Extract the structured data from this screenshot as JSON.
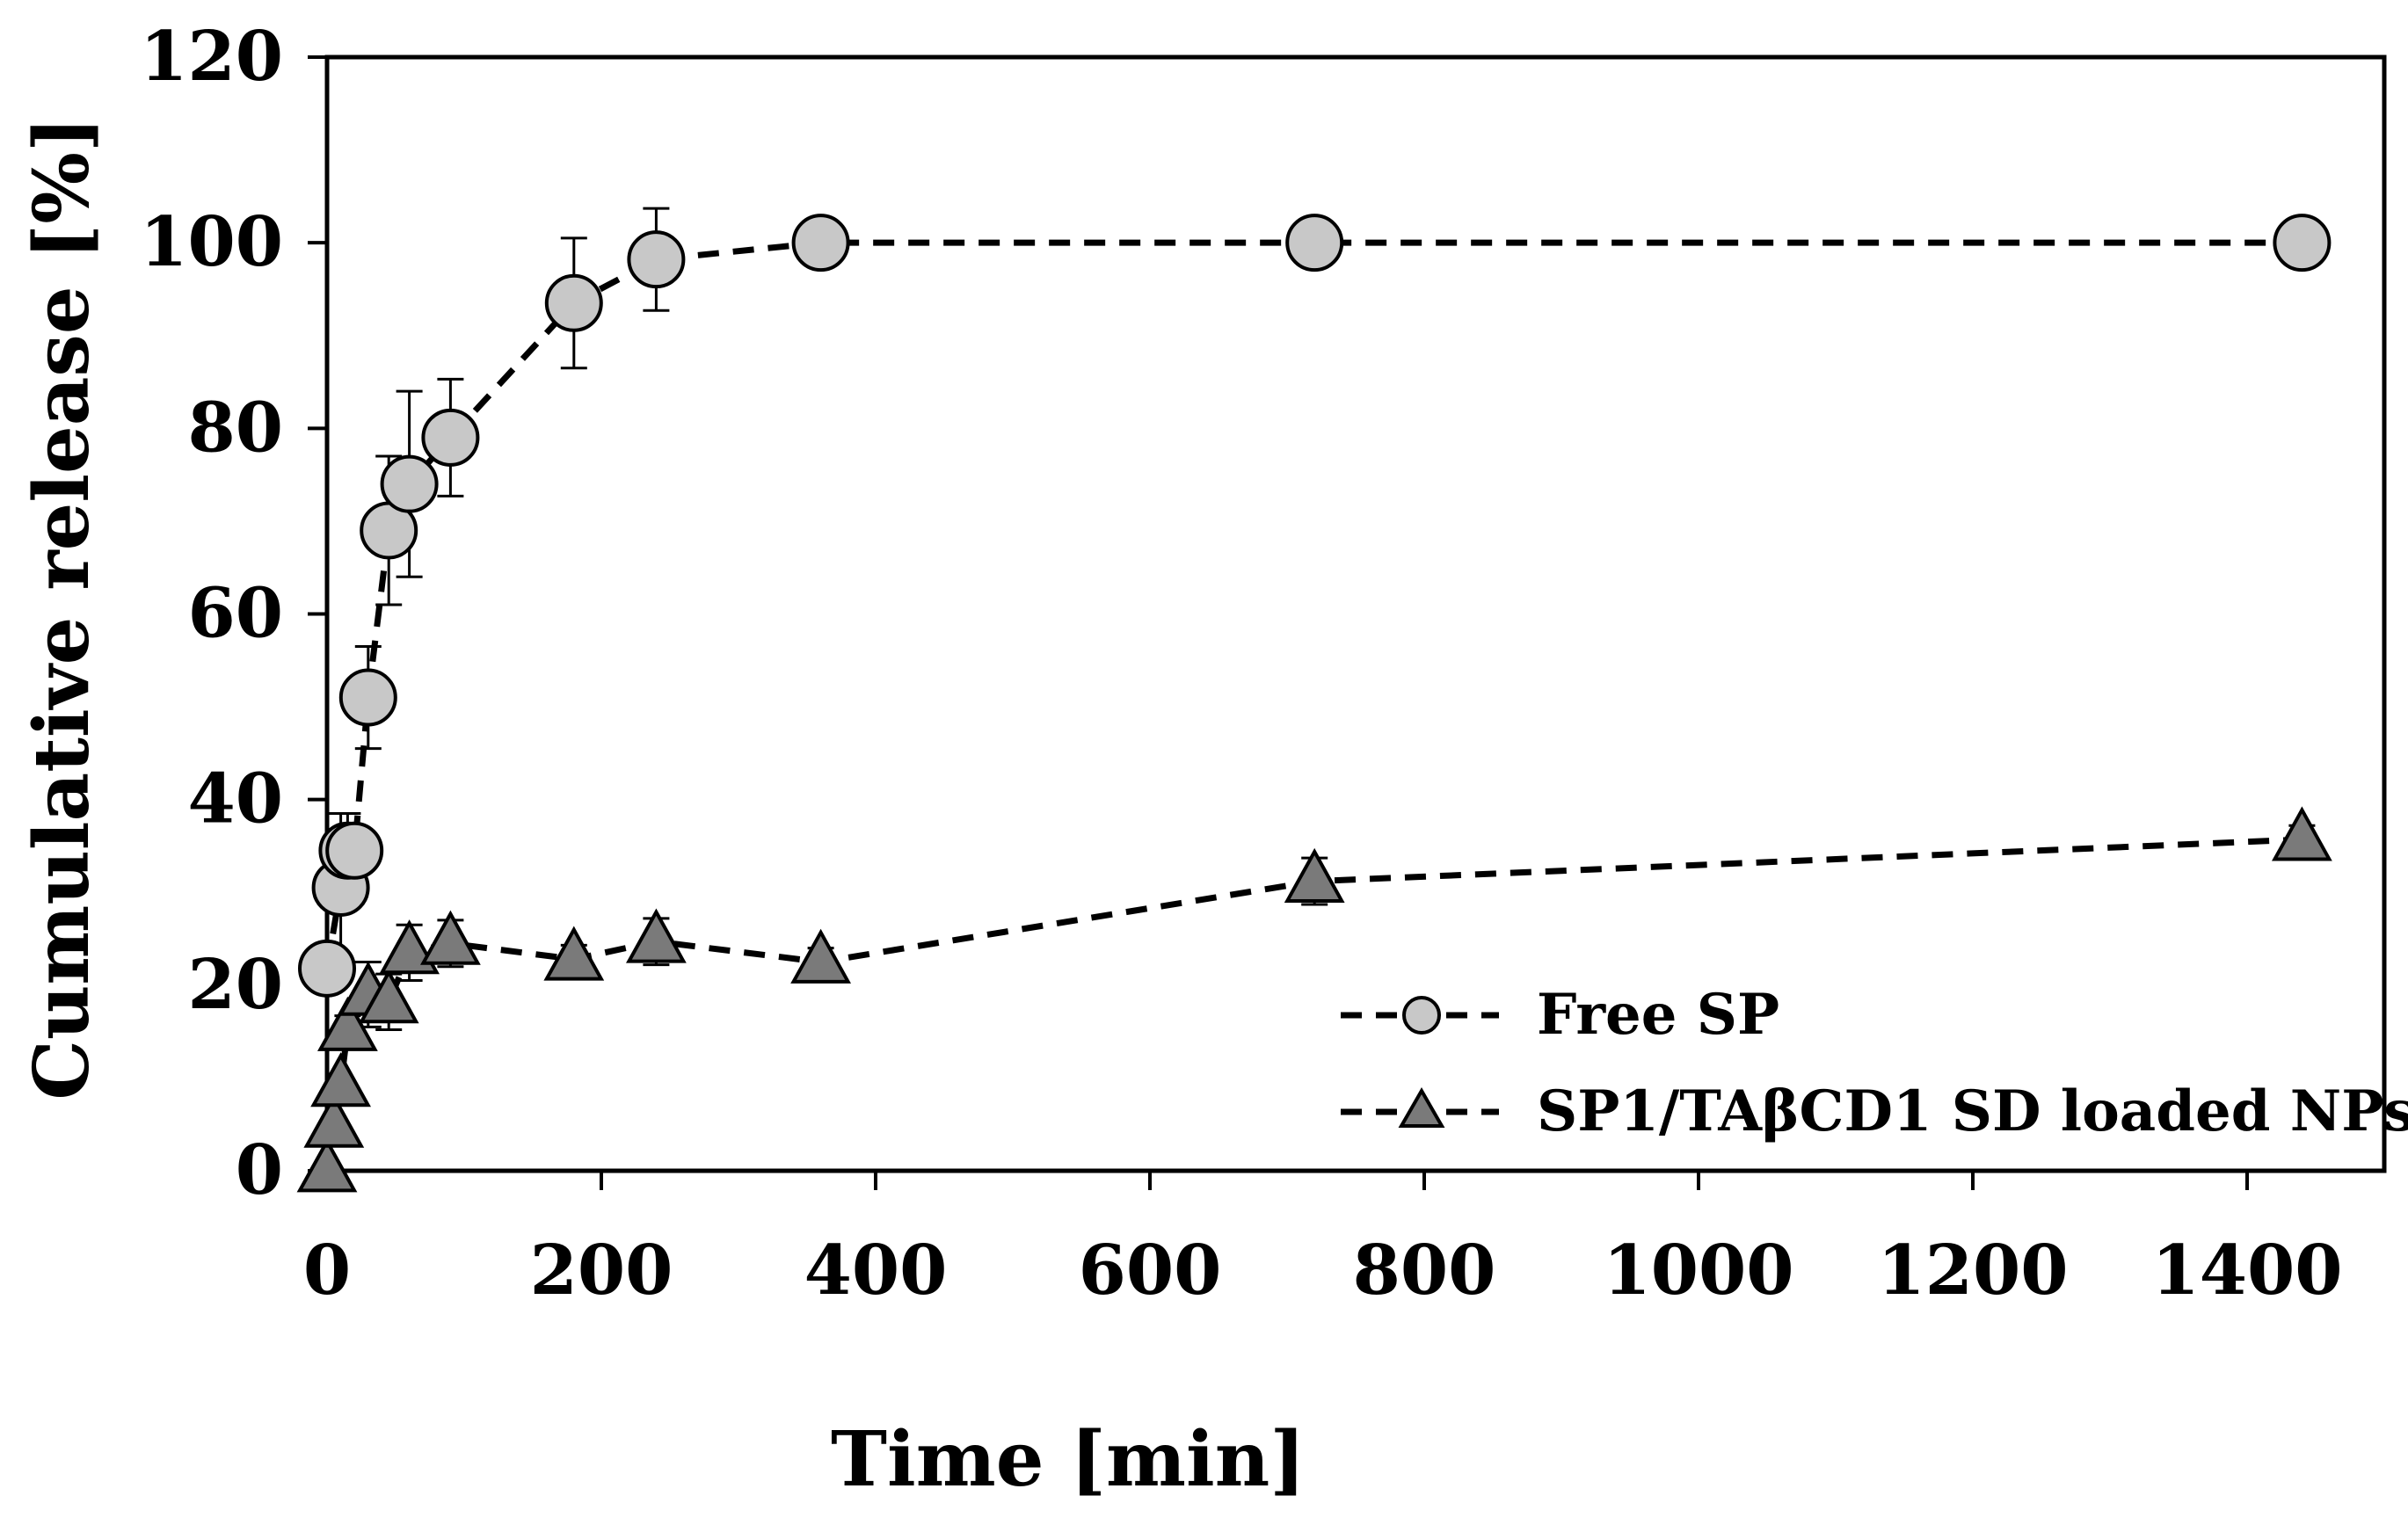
{
  "chart_data": {
    "type": "scatter",
    "xlabel": "Time [min]",
    "ylabel": "Cumulative release [%]",
    "xlim": [
      0,
      1500
    ],
    "ylim": [
      0,
      120
    ],
    "xticks": [
      0,
      200,
      400,
      600,
      800,
      1000,
      1200,
      1400
    ],
    "yticks": [
      0,
      20,
      40,
      60,
      80,
      100,
      120
    ],
    "legend_position": "bottom-right",
    "series": [
      {
        "name": "Free SP",
        "marker": "circle",
        "line": "dashed",
        "fill": "#c8c8c8",
        "x": [
          0,
          10,
          15,
          20,
          30,
          45,
          60,
          90,
          180,
          240,
          360,
          720,
          1440
        ],
        "y": [
          21.8,
          30.5,
          34.5,
          34.5,
          51,
          69,
          74,
          79,
          93.5,
          98.2,
          100,
          100,
          100
        ],
        "error": [
          0,
          8,
          4,
          0,
          5.5,
          8,
          10,
          6.3,
          7,
          5.5,
          0,
          0,
          0
        ]
      },
      {
        "name": "SP1/TAβCD1 SD loaded NPs",
        "marker": "triangle",
        "line": "dashed",
        "fill": "#7a7a7a",
        "x": [
          0,
          5,
          10,
          15,
          30,
          45,
          60,
          90,
          180,
          240,
          360,
          720,
          1440
        ],
        "y": [
          0,
          4.8,
          9.2,
          15.2,
          19,
          18.2,
          23.5,
          24.5,
          22.8,
          24.7,
          22.5,
          31.2,
          35.7
        ],
        "error": [
          0,
          0,
          0,
          1.5,
          3.5,
          3,
          3,
          2.5,
          1.5,
          2.5,
          1.5,
          2.5,
          1.5
        ]
      }
    ]
  }
}
